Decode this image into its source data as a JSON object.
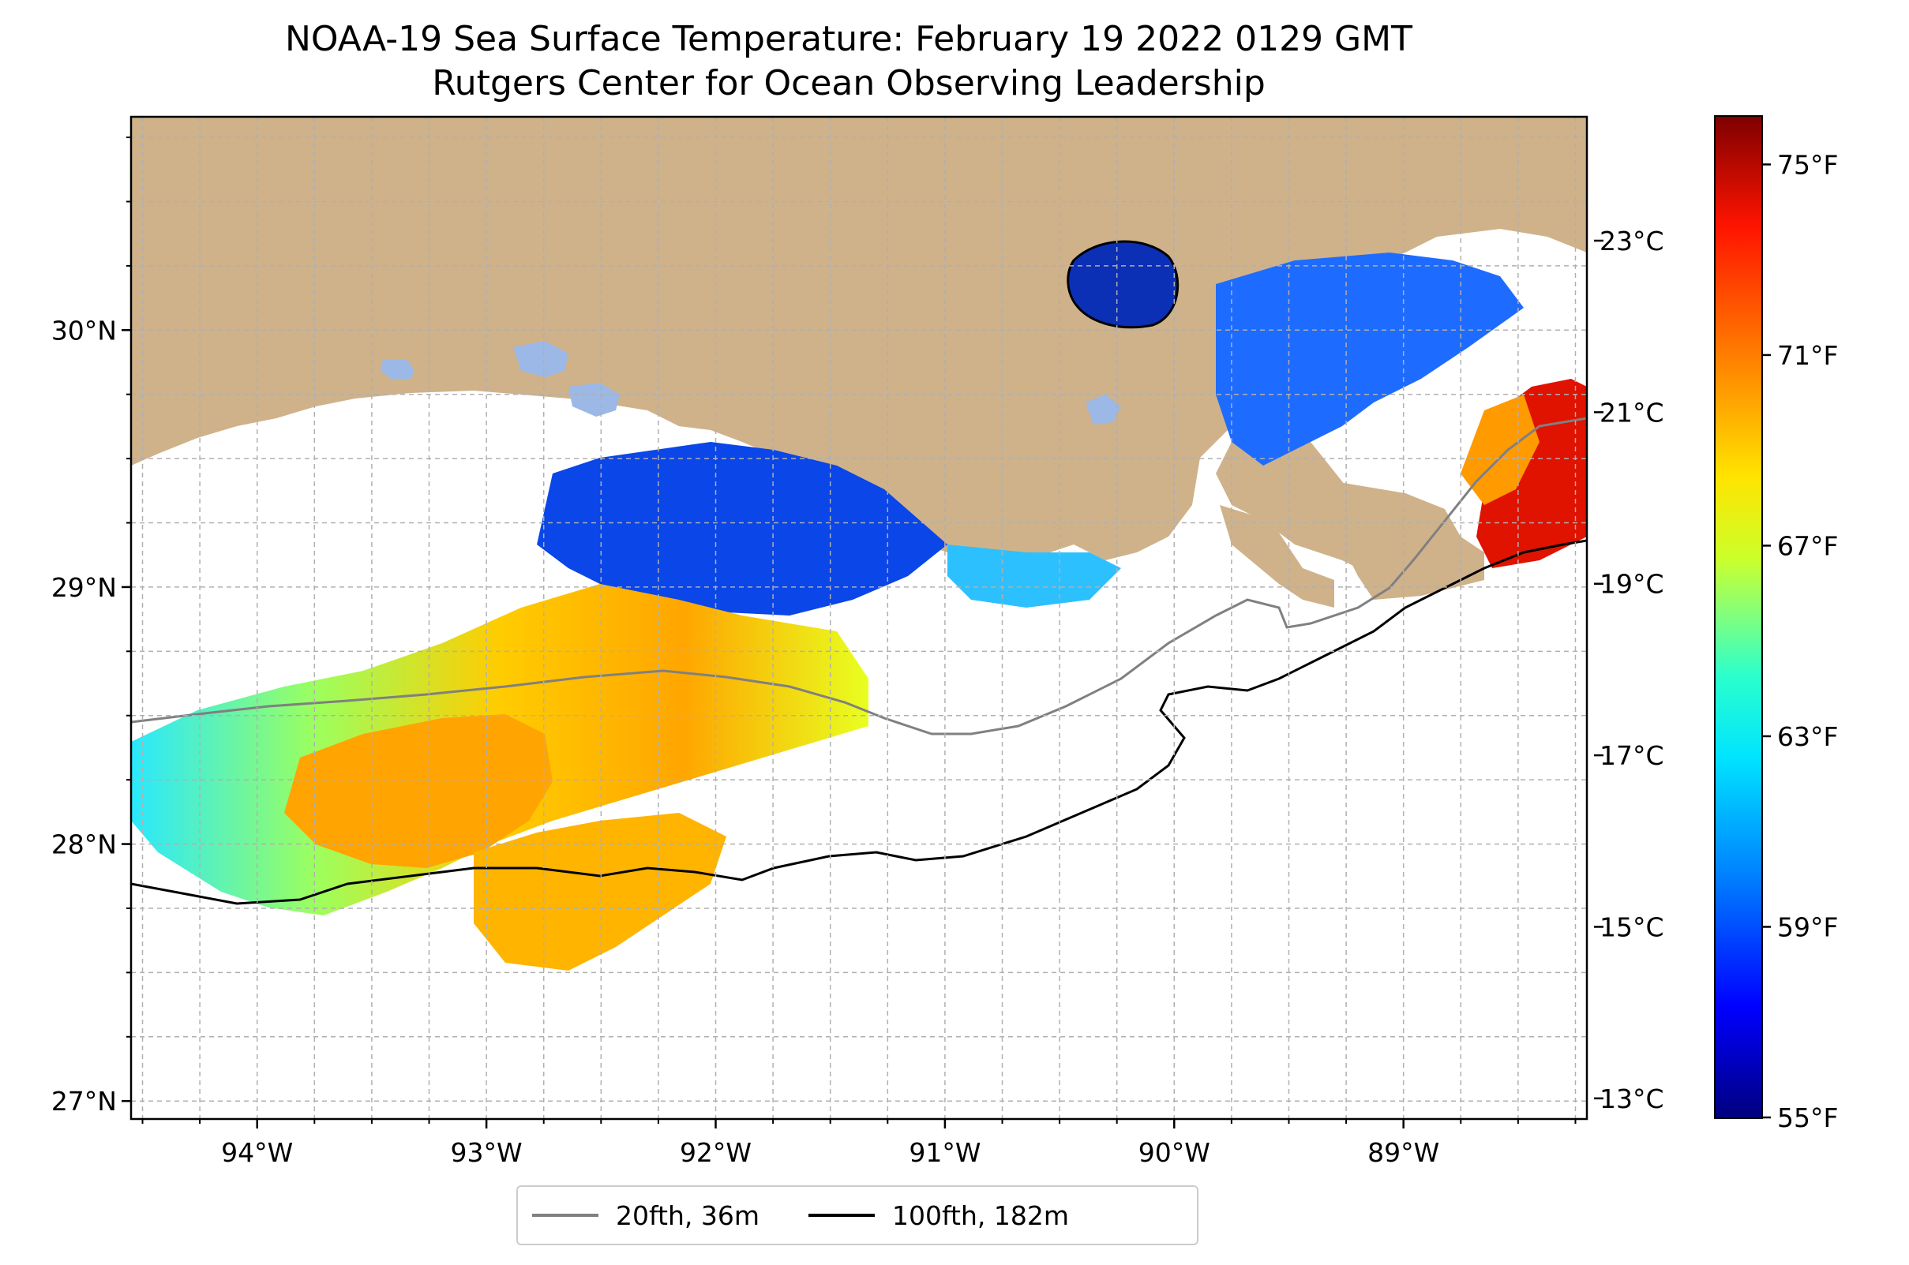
{
  "title": {
    "line1": "NOAA-19 Sea Surface Temperature: February 19 2022 0129 GMT",
    "line2": "Rutgers Center for Ocean Observing Leadership"
  },
  "map": {
    "lon_range": [
      -94.55,
      -88.2
    ],
    "lat_range": [
      26.93,
      30.83
    ],
    "lon_ticks": [
      {
        "value": -94,
        "label": "94°W"
      },
      {
        "value": -93,
        "label": "93°W"
      },
      {
        "value": -92,
        "label": "92°W"
      },
      {
        "value": -91,
        "label": "91°W"
      },
      {
        "value": -90,
        "label": "90°W"
      },
      {
        "value": -89,
        "label": "89°W"
      }
    ],
    "lat_ticks": [
      {
        "value": 30,
        "label": "30°N"
      },
      {
        "value": 29,
        "label": "29°N"
      },
      {
        "value": 28,
        "label": "28°N"
      },
      {
        "value": 27,
        "label": "27°N"
      }
    ],
    "gridlines": true,
    "colors": {
      "land": "#cfb28a",
      "ocean": "#ffffff",
      "lakes": "#9bb8e6",
      "coastline": "#000000"
    }
  },
  "legend": {
    "placement": "bottom-center",
    "items": [
      {
        "label": "20fth, 36m",
        "color": "#808080"
      },
      {
        "label": "100fth, 182m",
        "color": "#000000"
      }
    ]
  },
  "colorbar": {
    "colormap": "jet",
    "range_f": [
      55,
      76
    ],
    "celsius_ticks": [
      {
        "value": 23,
        "label": "23°C"
      },
      {
        "value": 21,
        "label": "21°C"
      },
      {
        "value": 19,
        "label": "19°C"
      },
      {
        "value": 17,
        "label": "17°C"
      },
      {
        "value": 15,
        "label": "15°C"
      },
      {
        "value": 13,
        "label": "13°C"
      }
    ],
    "fahrenheit_ticks": [
      {
        "value": 75,
        "label": "75°F"
      },
      {
        "value": 71,
        "label": "71°F"
      },
      {
        "value": 67,
        "label": "67°F"
      },
      {
        "value": 63,
        "label": "63°F"
      },
      {
        "value": 59,
        "label": "59°F"
      },
      {
        "value": 55,
        "label": "55°F"
      }
    ]
  }
}
